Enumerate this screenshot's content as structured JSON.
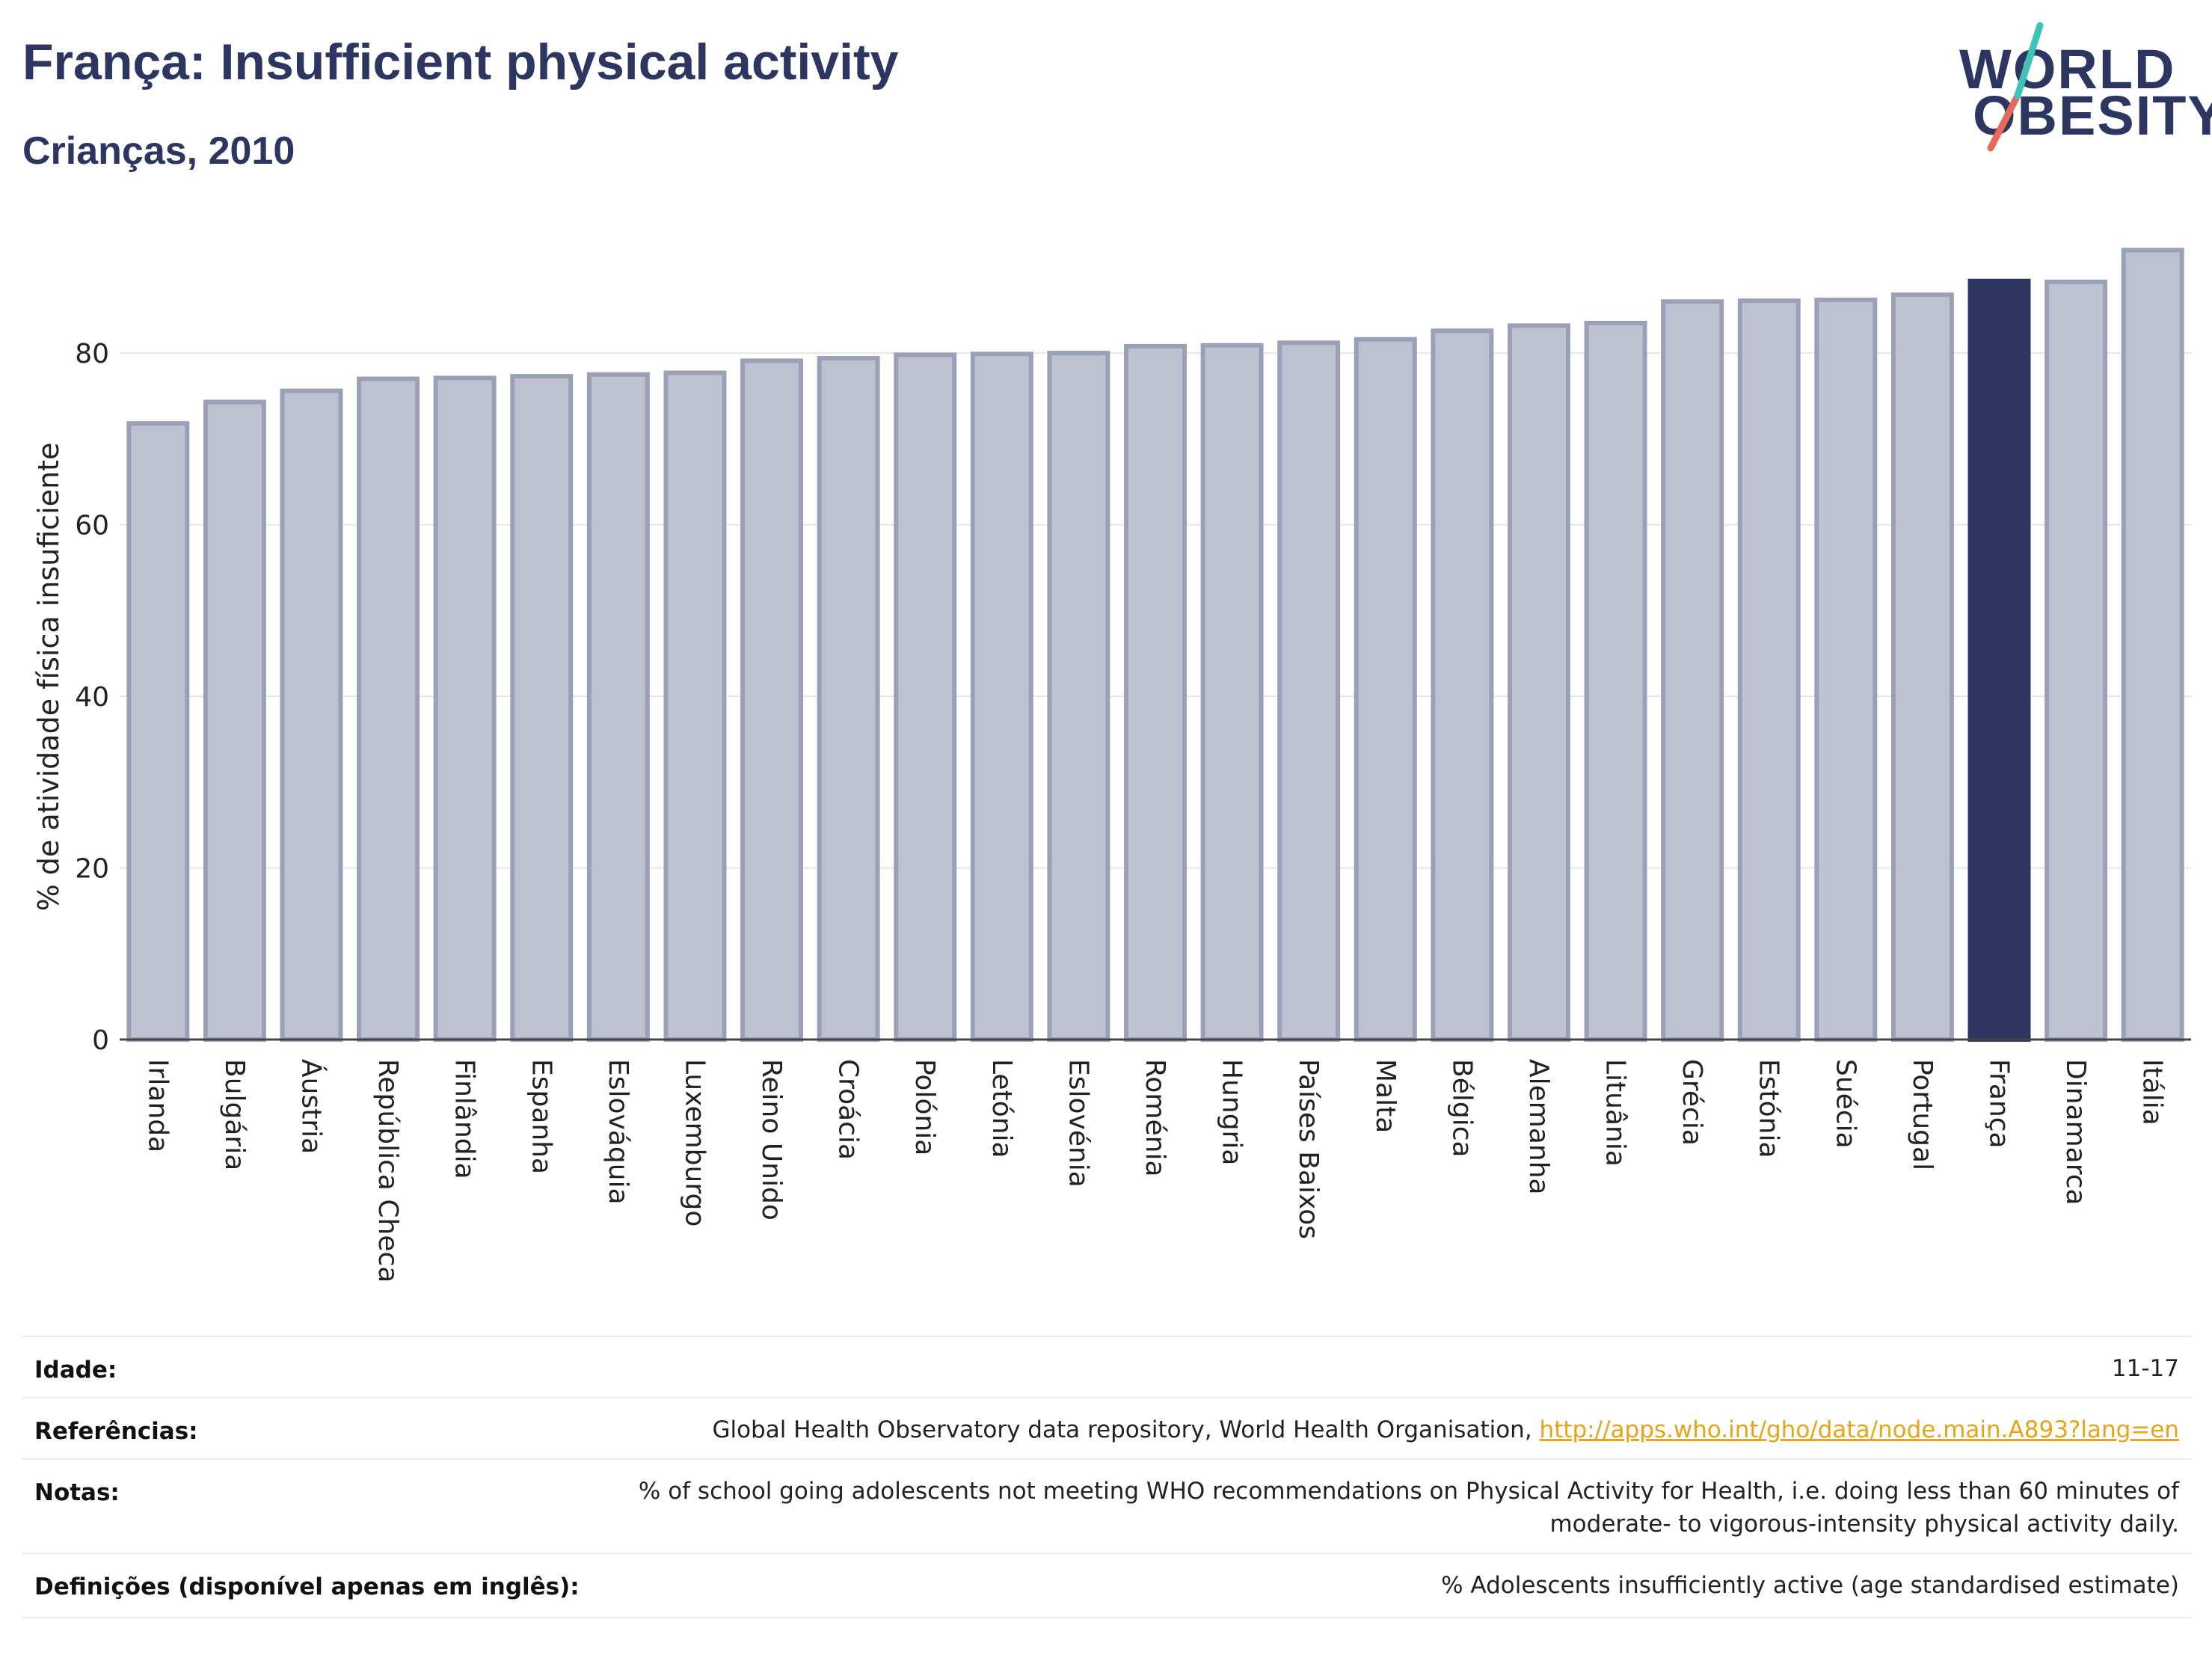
{
  "header": {
    "title": "França: Insufficient physical activity",
    "subtitle": "Crianças, 2010"
  },
  "logo": {
    "line1": "WORLD",
    "line2": "OBESITY",
    "accent_color": "#e8685a",
    "accent_color2": "#3ec3b8"
  },
  "colors": {
    "bar": "#bec2d0",
    "bar_border": "#9aa0b8",
    "highlight": "#2d3561",
    "grid": "#e6e6e6"
  },
  "chart_data": {
    "type": "bar",
    "ylabel": "% de atividade física insuficiente",
    "ylim": [
      0,
      95
    ],
    "yticks": [
      0,
      20,
      40,
      60,
      80
    ],
    "highlight": "França",
    "categories": [
      "Irlanda",
      "Bulgária",
      "Áustria",
      "República Checa",
      "Finlândia",
      "Espanha",
      "Eslováquia",
      "Luxemburgo",
      "Reino Unido",
      "Croácia",
      "Polónia",
      "Letónia",
      "Eslovénia",
      "Roménia",
      "Hungria",
      "Países Baixos",
      "Malta",
      "Bélgica",
      "Alemanha",
      "Lituânia",
      "Grécia",
      "Estónia",
      "Suécia",
      "Portugal",
      "França",
      "Dinamarca",
      "Itália"
    ],
    "values": [
      71.8,
      74.3,
      75.6,
      77.0,
      77.1,
      77.3,
      77.5,
      77.7,
      79.1,
      79.4,
      79.8,
      79.9,
      80.0,
      80.8,
      80.9,
      81.2,
      81.6,
      82.6,
      83.2,
      83.5,
      86.0,
      86.1,
      86.2,
      86.8,
      88.4,
      88.3,
      92.0
    ]
  },
  "footer": {
    "rows": [
      {
        "label": "Idade:",
        "value": "11-17"
      },
      {
        "label": "Referências:",
        "value": "Global Health Observatory data repository, World Health Organisation, ",
        "link": "http://apps.who.int/gho/data/node.main.A893?lang=en"
      },
      {
        "label": "Notas:",
        "value": "% of school going adolescents not meeting WHO recommendations on Physical Activity for Health, i.e. doing less than 60 minutes of",
        "value2": "moderate- to vigorous-intensity physical activity daily."
      },
      {
        "label": "Definições (disponível apenas em inglês):",
        "value": "% Adolescents insufficiently active (age standardised estimate)"
      }
    ]
  }
}
